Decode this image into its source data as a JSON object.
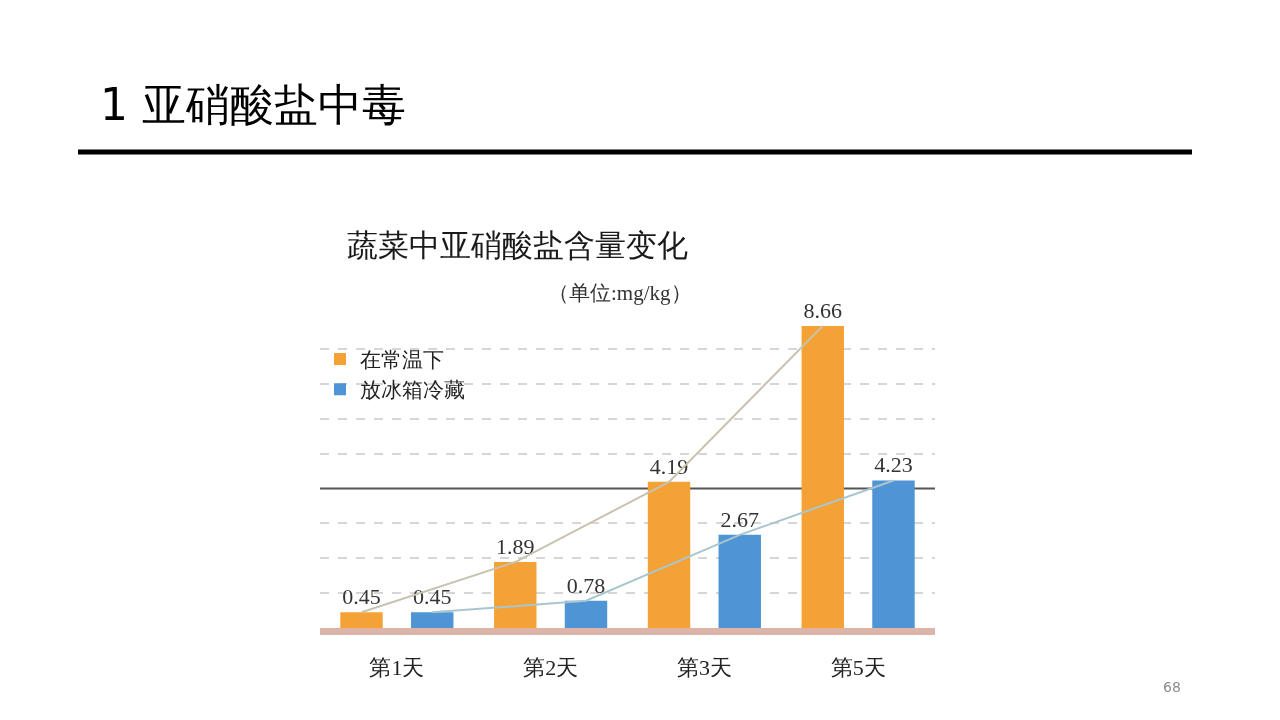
{
  "chart_data": {
    "type": "bar",
    "title": "1 亚硝酸盐中毒",
    "subtitle": "蔬菜中亚硝酸盐含量变化",
    "annotations": [
      "（单位:mg/kg）",
      "68"
    ],
    "categories": [
      "第1天",
      "第2天",
      "第3天",
      "第5天"
    ],
    "series": [
      {
        "name": "在常温下",
        "color": "#f4a236",
        "values": [
          0.45,
          1.89,
          4.19,
          8.66
        ],
        "value_labels": [
          "0.45",
          "1.89",
          "4.19",
          "8.66"
        ]
      },
      {
        "name": "放冰箱冷藏",
        "color": "#4f95d6",
        "values": [
          0.45,
          0.78,
          2.67,
          4.23
        ],
        "value_labels": [
          "0.45",
          "0.78",
          "2.67",
          "4.23"
        ]
      },
      {
        "type": "line",
        "color": "#c9c2b0",
        "values": [
          0.45,
          1.89,
          4.19,
          8.66
        ]
      },
      {
        "type": "line",
        "color": "#a9c6cf",
        "values": [
          0.45,
          0.78,
          2.67,
          4.23
        ]
      }
    ],
    "yticks": [
      {
        "value": 1,
        "label": null
      },
      {
        "value": 2,
        "label": null
      },
      {
        "value": 3,
        "label": null
      },
      {
        "value": 5,
        "label": null
      },
      {
        "value": 6,
        "label": null
      },
      {
        "value": 7,
        "label": null
      },
      {
        "value": 8,
        "label": null
      }
    ],
    "tick_labels": "x",
    "grid": "y",
    "legend": "top left",
    "marker": "none",
    "ref_lines": [
      {
        "axis": "y",
        "value": 4,
        "color": "#555555"
      }
    ]
  }
}
